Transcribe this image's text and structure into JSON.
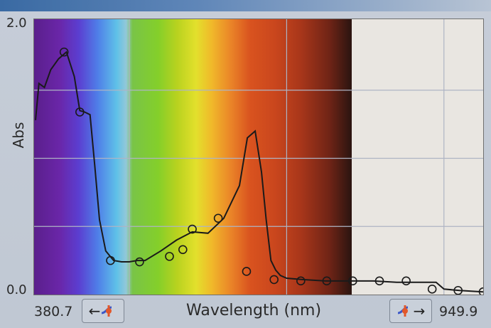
{
  "plot": {
    "ylabel": "Abs",
    "xlabel": "Wavelength (nm)",
    "y_tick_top": "2.0",
    "y_tick_bottom": "0.0"
  },
  "range": {
    "min": "380.7",
    "max": "949.9"
  },
  "buttons": {
    "left_arrow": "←",
    "right_arrow": "→"
  },
  "colors": {
    "curve": "#1a1a1a",
    "grid": "#aeb4c4"
  },
  "chart_data": {
    "type": "line",
    "xlabel": "Wavelength (nm)",
    "ylabel": "Abs",
    "xlim": [
      380.7,
      949.9
    ],
    "ylim": [
      0.0,
      2.0
    ],
    "x": [
      380.7,
      385,
      392,
      400,
      410,
      420,
      430,
      437,
      443,
      450,
      456,
      462,
      470,
      480,
      490,
      500,
      510,
      520,
      540,
      560,
      580,
      600,
      620,
      640,
      650,
      660,
      668,
      674,
      680,
      686,
      692,
      700,
      720,
      750,
      780,
      810,
      840,
      870,
      890,
      900,
      920,
      949.9
    ],
    "y": [
      1.28,
      1.55,
      1.52,
      1.65,
      1.73,
      1.78,
      1.6,
      1.35,
      1.34,
      1.32,
      0.95,
      0.55,
      0.32,
      0.25,
      0.24,
      0.24,
      0.25,
      0.25,
      0.32,
      0.4,
      0.46,
      0.45,
      0.56,
      0.8,
      1.15,
      1.2,
      0.9,
      0.55,
      0.25,
      0.18,
      0.14,
      0.12,
      0.11,
      0.1,
      0.1,
      0.1,
      0.09,
      0.09,
      0.09,
      0.04,
      0.03,
      0.02
    ],
    "markers_x": [
      417,
      437,
      476,
      513,
      551,
      568,
      580,
      613,
      649,
      684,
      718,
      751,
      784,
      818,
      852,
      885,
      918,
      949.9
    ],
    "markers_y": [
      1.78,
      1.34,
      0.25,
      0.24,
      0.28,
      0.33,
      0.48,
      0.56,
      0.17,
      0.11,
      0.1,
      0.1,
      0.1,
      0.1,
      0.1,
      0.04,
      0.03,
      0.02
    ]
  }
}
